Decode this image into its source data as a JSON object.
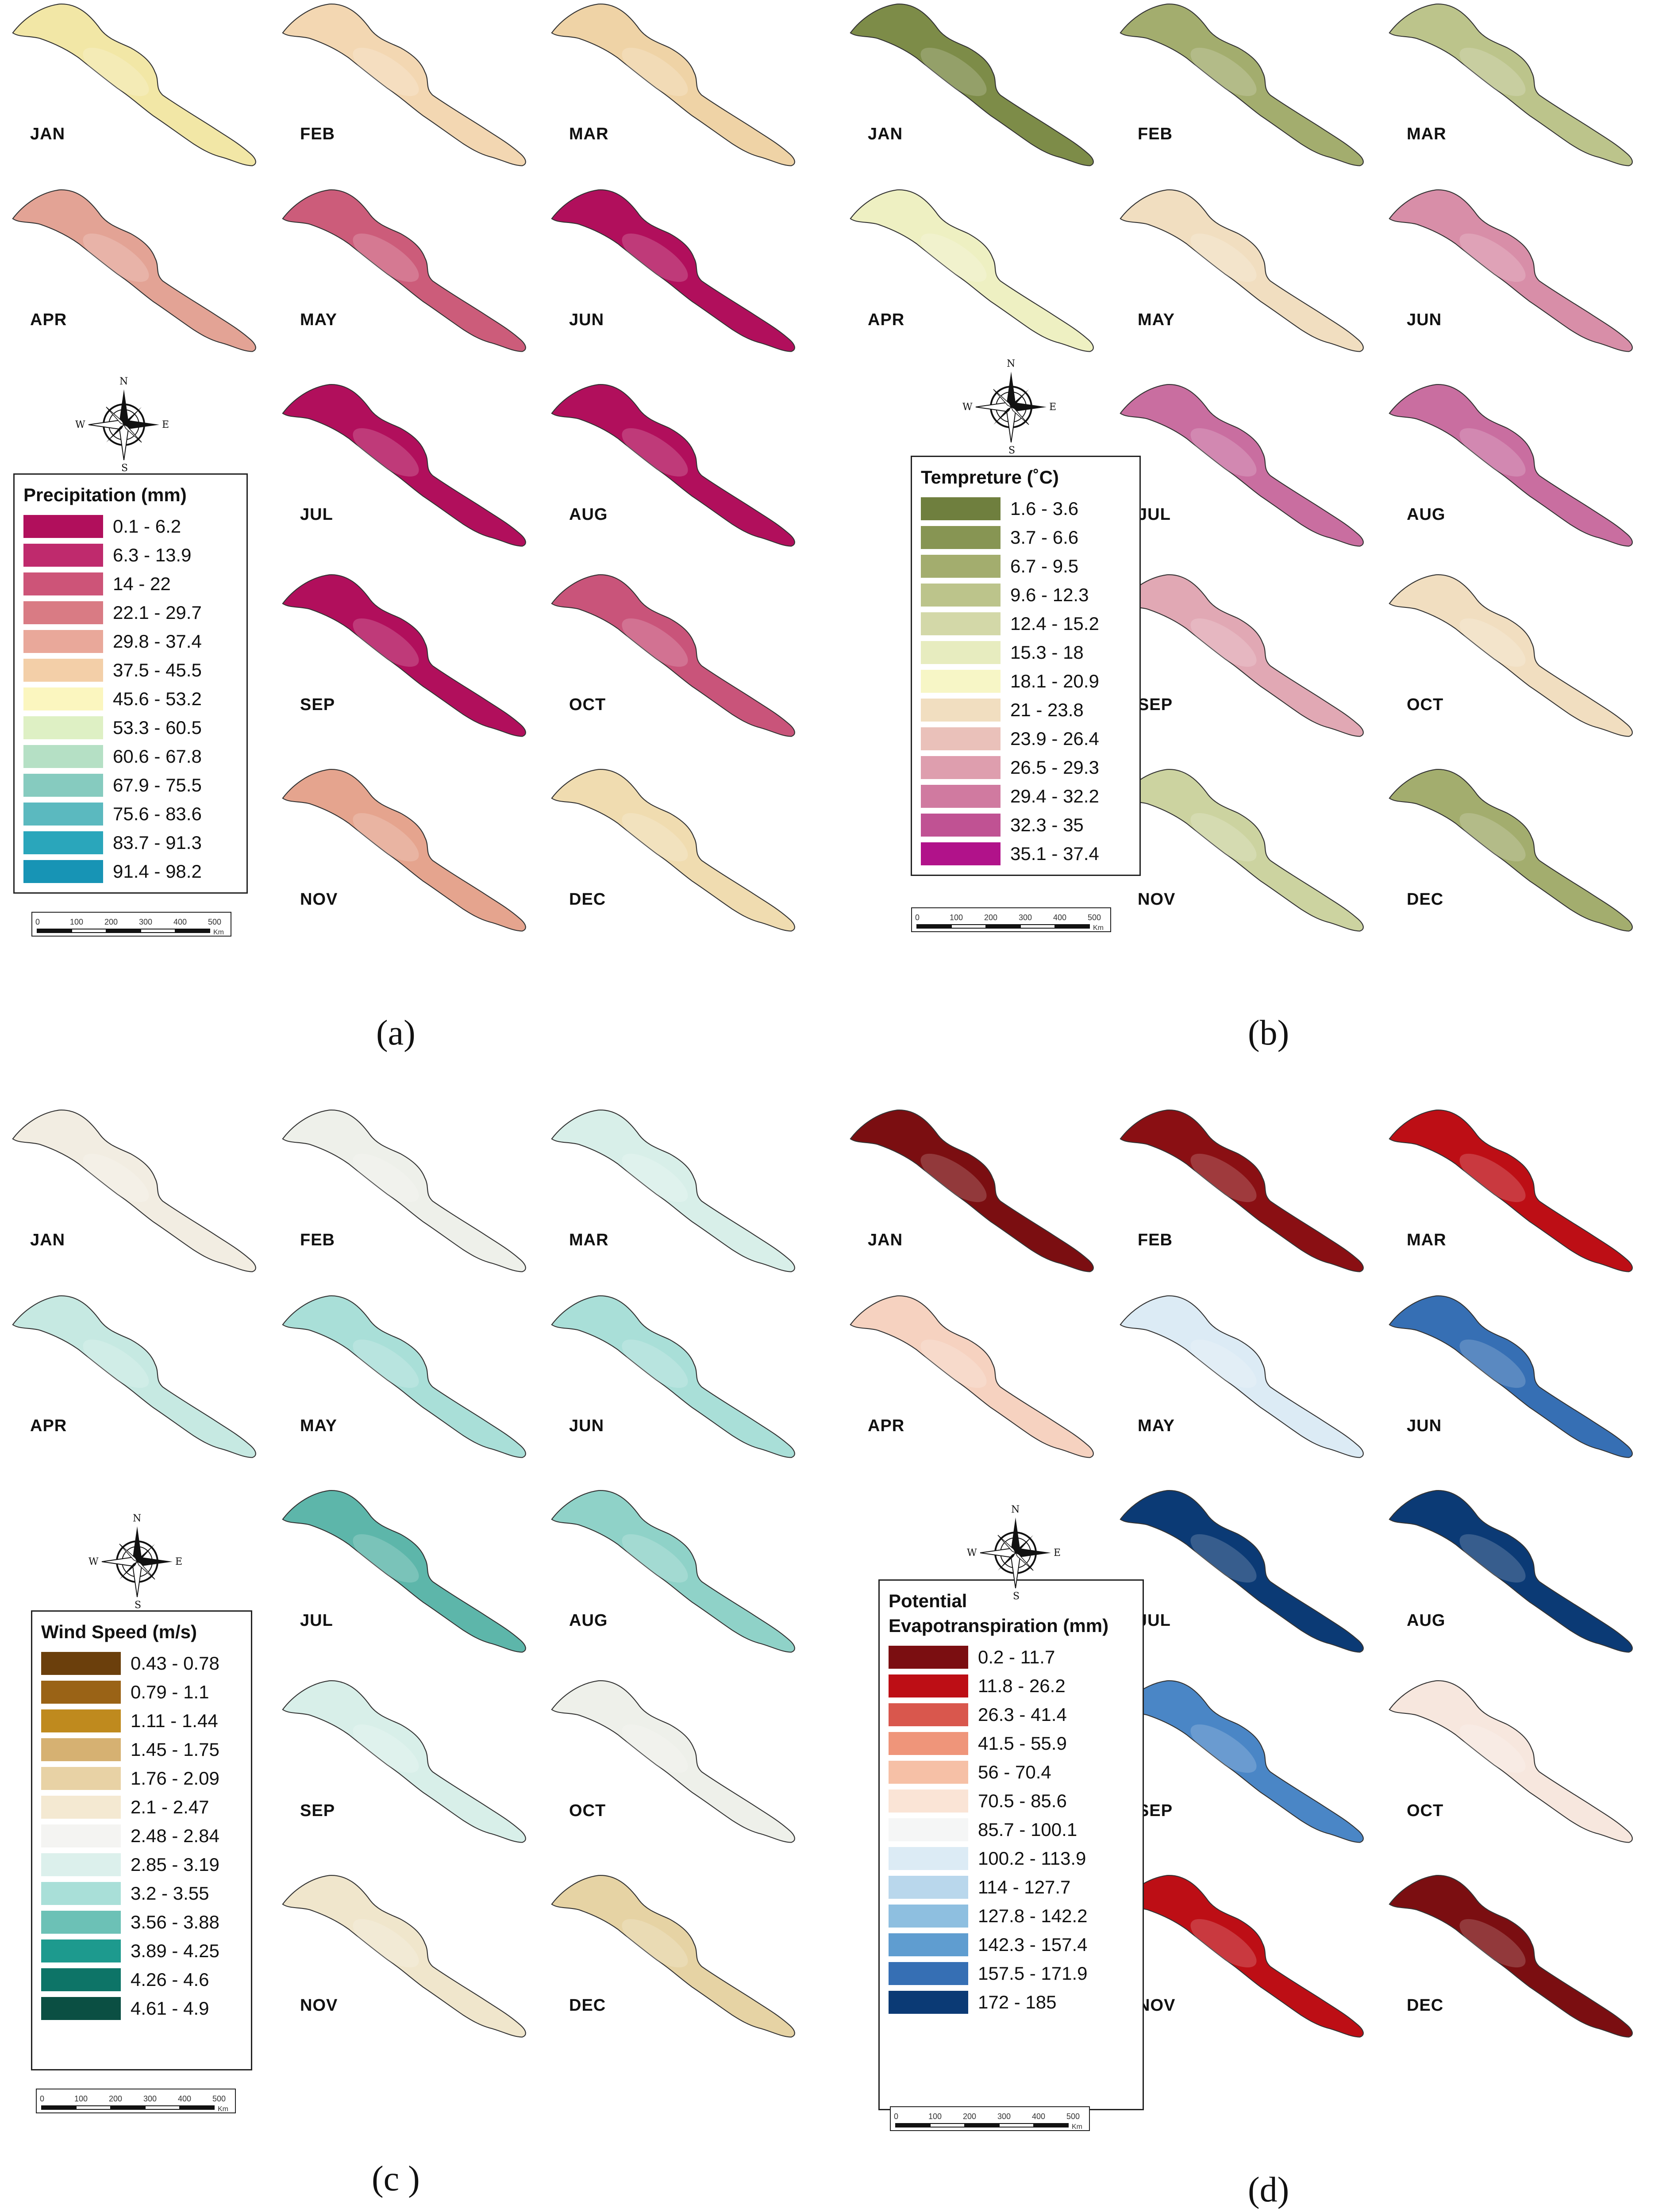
{
  "months": [
    "JAN",
    "FEB",
    "MAR",
    "APR",
    "MAY",
    "JUN",
    "JUL",
    "AUG",
    "SEP",
    "OCT",
    "NOV",
    "DEC"
  ],
  "compass": {
    "n": "N",
    "s": "S",
    "e": "E",
    "w": "W"
  },
  "scale": {
    "ticks": [
      "0",
      "100",
      "200",
      "300",
      "400",
      "500"
    ],
    "unit": "Km"
  },
  "panels": [
    {
      "caption": "(a)",
      "legend_title": "Precipitation  (mm)",
      "classes": [
        {
          "range": "0.1 - 6.2",
          "color": "#b10f5c"
        },
        {
          "range": "6.3 - 13.9",
          "color": "#bf2a6d"
        },
        {
          "range": "14 - 22",
          "color": "#cd5478"
        },
        {
          "range": "22.1 - 29.7",
          "color": "#d97b84"
        },
        {
          "range": "29.8 - 37.4",
          "color": "#e9a89a"
        },
        {
          "range": "37.5 - 45.5",
          "color": "#f3cfa8"
        },
        {
          "range": "45.6 - 53.2",
          "color": "#fbf6bf"
        },
        {
          "range": "53.3 - 60.5",
          "color": "#def0c4"
        },
        {
          "range": "60.6 - 67.8",
          "color": "#b5e0c5"
        },
        {
          "range": "67.9 - 75.5",
          "color": "#86cbbf"
        },
        {
          "range": "75.6 - 83.6",
          "color": "#5bb9bf"
        },
        {
          "range": "83.7 - 91.3",
          "color": "#2aa6bb"
        },
        {
          "range": "91.4 - 98.2",
          "color": "#1794b5"
        }
      ],
      "month_fill": [
        "#f2e7a6",
        "#f3d7b2",
        "#efd3a6",
        "#e3a395",
        "#cc5c7a",
        "#b10f5c",
        "#b10f5c",
        "#b10f5c",
        "#b10f5c",
        "#c9547a",
        "#e5a48e",
        "#f0dcb0"
      ]
    },
    {
      "caption": "(b)",
      "legend_title": "Tempreture (˚C)",
      "classes": [
        {
          "range": "1.6 - 3.6",
          "color": "#6f7f3e"
        },
        {
          "range": "3.7 - 6.6",
          "color": "#879553"
        },
        {
          "range": "6.7 - 9.5",
          "color": "#a3ad6e"
        },
        {
          "range": "9.6 - 12.3",
          "color": "#bcc48b"
        },
        {
          "range": "12.4 - 15.2",
          "color": "#d3d8a8"
        },
        {
          "range": "15.3 - 18",
          "color": "#e7ecbf"
        },
        {
          "range": "18.1 - 20.9",
          "color": "#f7f6c6"
        },
        {
          "range": "21 - 23.8",
          "color": "#f1dec0"
        },
        {
          "range": "23.9 - 26.4",
          "color": "#eac1ba"
        },
        {
          "range": "26.5 - 29.3",
          "color": "#de9eae"
        },
        {
          "range": "29.4 - 32.2",
          "color": "#d07aa0"
        },
        {
          "range": "32.3 - 35",
          "color": "#c05293"
        },
        {
          "range": "35.1 - 37.4",
          "color": "#b1128a"
        }
      ],
      "month_fill": [
        "#7d8c48",
        "#a3ad6e",
        "#bcc48b",
        "#eef0c2",
        "#f1dec0",
        "#d88ea8",
        "#c96ea0",
        "#c96ea0",
        "#e1a8b4",
        "#f1dec0",
        "#ccd3a0",
        "#a3ad6e"
      ]
    },
    {
      "caption": "(c )",
      "legend_title": "Wind Speed (m/s)",
      "classes": [
        {
          "range": "0.43 - 0.78",
          "color": "#6b3f0c"
        },
        {
          "range": "0.79 - 1.1",
          "color": "#9a6316"
        },
        {
          "range": "1.11 - 1.44",
          "color": "#bf8a1e"
        },
        {
          "range": "1.45 - 1.75",
          "color": "#d6b172"
        },
        {
          "range": "1.76 - 2.09",
          "color": "#e8d2a5"
        },
        {
          "range": "2.1 - 2.47",
          "color": "#f4e9d2"
        },
        {
          "range": "2.48 - 2.84",
          "color": "#f4f4f2"
        },
        {
          "range": "2.85 - 3.19",
          "color": "#dcf0ec"
        },
        {
          "range": "3.2 - 3.55",
          "color": "#a9dfd8"
        },
        {
          "range": "3.56 - 3.88",
          "color": "#6cc1b6"
        },
        {
          "range": "3.89 - 4.25",
          "color": "#1d9a8e"
        },
        {
          "range": "4.26 - 4.6",
          "color": "#0d7467"
        },
        {
          "range": "4.61 - 4.9",
          "color": "#0b4f43"
        }
      ],
      "month_fill": [
        "#f2ede2",
        "#eef0ea",
        "#d8efe9",
        "#c6e9e2",
        "#a9dfd8",
        "#a9dfd8",
        "#5db6aa",
        "#8fd2c8",
        "#d8efe9",
        "#eef0ea",
        "#f0e6cc",
        "#e6d3a4"
      ]
    },
    {
      "caption": "(d)",
      "legend_title": "Potential Evapotranspiration (mm)",
      "classes": [
        {
          "range": "0.2 - 11.7",
          "color": "#7b0e11"
        },
        {
          "range": "11.8 - 26.2",
          "color": "#bd0e15"
        },
        {
          "range": "26.3 - 41.4",
          "color": "#d9574d"
        },
        {
          "range": "41.5 - 55.9",
          "color": "#ef957a"
        },
        {
          "range": "56 - 70.4",
          "color": "#f6c0a6"
        },
        {
          "range": "70.5 - 85.6",
          "color": "#fae4d6"
        },
        {
          "range": "85.7 - 100.1",
          "color": "#f5f6f6"
        },
        {
          "range": "100.2 - 113.9",
          "color": "#dcebf5"
        },
        {
          "range": "114 - 127.7",
          "color": "#b9d7ec"
        },
        {
          "range": "127.8 - 142.2",
          "color": "#8ebfe0"
        },
        {
          "range": "142.3 - 157.4",
          "color": "#5f9dd0"
        },
        {
          "range": "157.5 - 171.9",
          "color": "#366fb4"
        },
        {
          "range": "172 - 185",
          "color": "#0b3a75"
        }
      ],
      "month_fill": [
        "#7b0e11",
        "#8a0f13",
        "#bd0e15",
        "#f6d2c0",
        "#dcebf5",
        "#366fb4",
        "#0b3a75",
        "#0b3a75",
        "#4a86c6",
        "#f7e7de",
        "#bd0e15",
        "#7b0e11"
      ]
    }
  ]
}
